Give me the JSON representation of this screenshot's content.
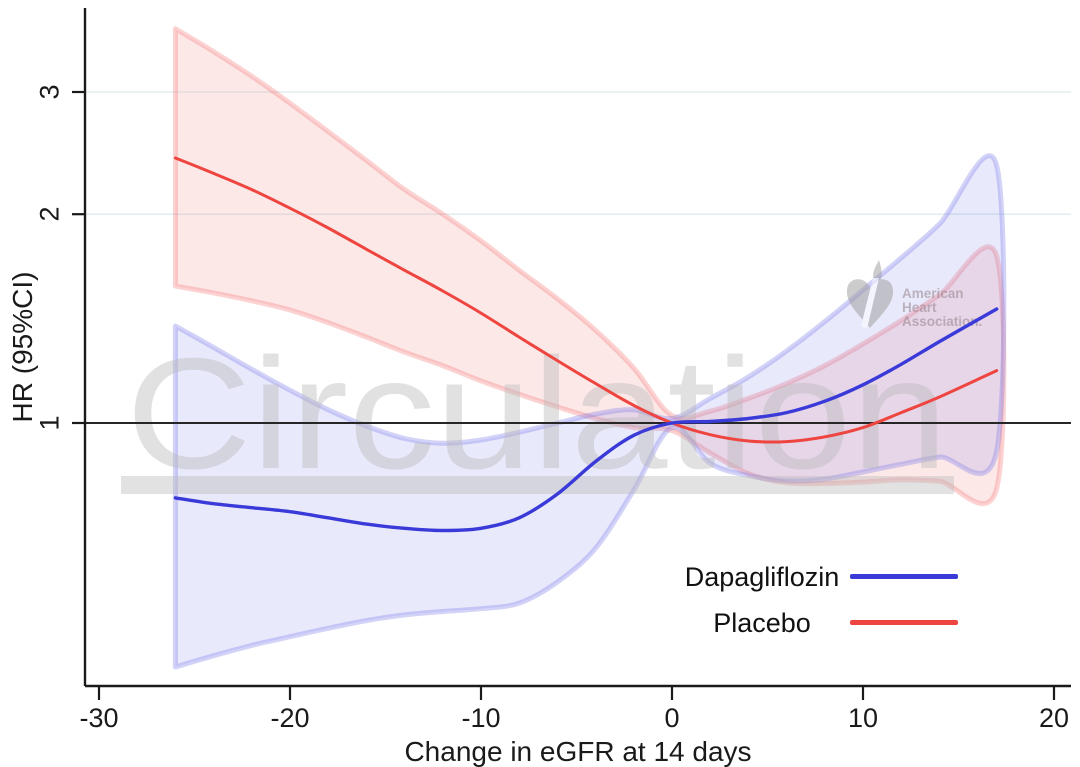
{
  "watermark": {
    "text": "Circulation"
  },
  "logo": {
    "line1": "American",
    "line2": "Heart",
    "line3": "Association."
  },
  "chart_data": {
    "type": "line",
    "title": "",
    "xlabel": "Change in eGFR at 14 days",
    "ylabel": "HR (95%CI)",
    "x_ticks": [
      -30,
      -20,
      -10,
      0,
      10,
      20
    ],
    "x_tick_labels": [
      "-30",
      "-20",
      "-10",
      "0",
      "10",
      "20"
    ],
    "y_ticks": [
      1,
      2,
      3
    ],
    "y_tick_labels": [
      "1",
      "2",
      "3"
    ],
    "y_scale": "log",
    "xlim": [
      -30.7,
      20.9
    ],
    "ylim": [
      0.42,
      3.96
    ],
    "grid": "horizontal gridlines at HR=2 and HR=3",
    "gridline_color": "#e2eff1",
    "reference_line_y": 1,
    "reference_line_color": "#262626",
    "legend_position": "inside lower right, no frame",
    "x": [
      -26,
      -24,
      -22,
      -20,
      -18,
      -16,
      -14,
      -12,
      -10,
      -8,
      -6,
      -4,
      -2,
      0,
      2,
      4,
      6,
      8,
      10,
      12,
      14,
      17
    ],
    "series": [
      {
        "name": "Dapagliflozin",
        "color": "#3a3ad9",
        "band_fill": "rgba(120,120,235,0.16)",
        "band_edge": "rgba(120,120,235,0.33)",
        "y": [
          0.78,
          0.765,
          0.755,
          0.745,
          0.73,
          0.715,
          0.705,
          0.7,
          0.705,
          0.73,
          0.79,
          0.88,
          0.96,
          1.0,
          1.005,
          1.015,
          1.035,
          1.075,
          1.135,
          1.215,
          1.31,
          1.46
        ],
        "ci_upper": [
          1.38,
          1.285,
          1.195,
          1.115,
          1.045,
          0.99,
          0.95,
          0.935,
          0.945,
          0.97,
          1.0,
          1.03,
          1.045,
          1.015,
          1.085,
          1.165,
          1.27,
          1.4,
          1.555,
          1.73,
          1.935,
          2.35
        ],
        "ci_lower": [
          0.445,
          0.462,
          0.478,
          0.492,
          0.506,
          0.519,
          0.529,
          0.535,
          0.54,
          0.55,
          0.59,
          0.66,
          0.8,
          0.985,
          0.875,
          0.84,
          0.825,
          0.83,
          0.85,
          0.872,
          0.893,
          0.912
        ]
      },
      {
        "name": "Placebo",
        "color": "#ef4540",
        "band_fill": "rgba(245,115,115,0.16)",
        "band_edge": "rgba(245,110,110,0.30)",
        "y": [
          2.41,
          2.29,
          2.17,
          2.04,
          1.91,
          1.78,
          1.66,
          1.55,
          1.44,
          1.33,
          1.23,
          1.14,
          1.06,
          1.0,
          0.962,
          0.942,
          0.94,
          0.955,
          0.985,
          1.035,
          1.09,
          1.19
        ],
        "ci_upper": [
          3.7,
          3.43,
          3.16,
          2.89,
          2.63,
          2.39,
          2.17,
          2.0,
          1.83,
          1.66,
          1.51,
          1.36,
          1.2,
          1.025,
          1.04,
          1.085,
          1.14,
          1.21,
          1.3,
          1.405,
          1.53,
          1.74
        ],
        "ci_lower": [
          1.575,
          1.54,
          1.5,
          1.455,
          1.395,
          1.33,
          1.265,
          1.21,
          1.15,
          1.1,
          1.055,
          1.015,
          0.985,
          0.975,
          0.905,
          0.845,
          0.82,
          0.818,
          0.822,
          0.828,
          0.824,
          0.805
        ]
      }
    ]
  }
}
